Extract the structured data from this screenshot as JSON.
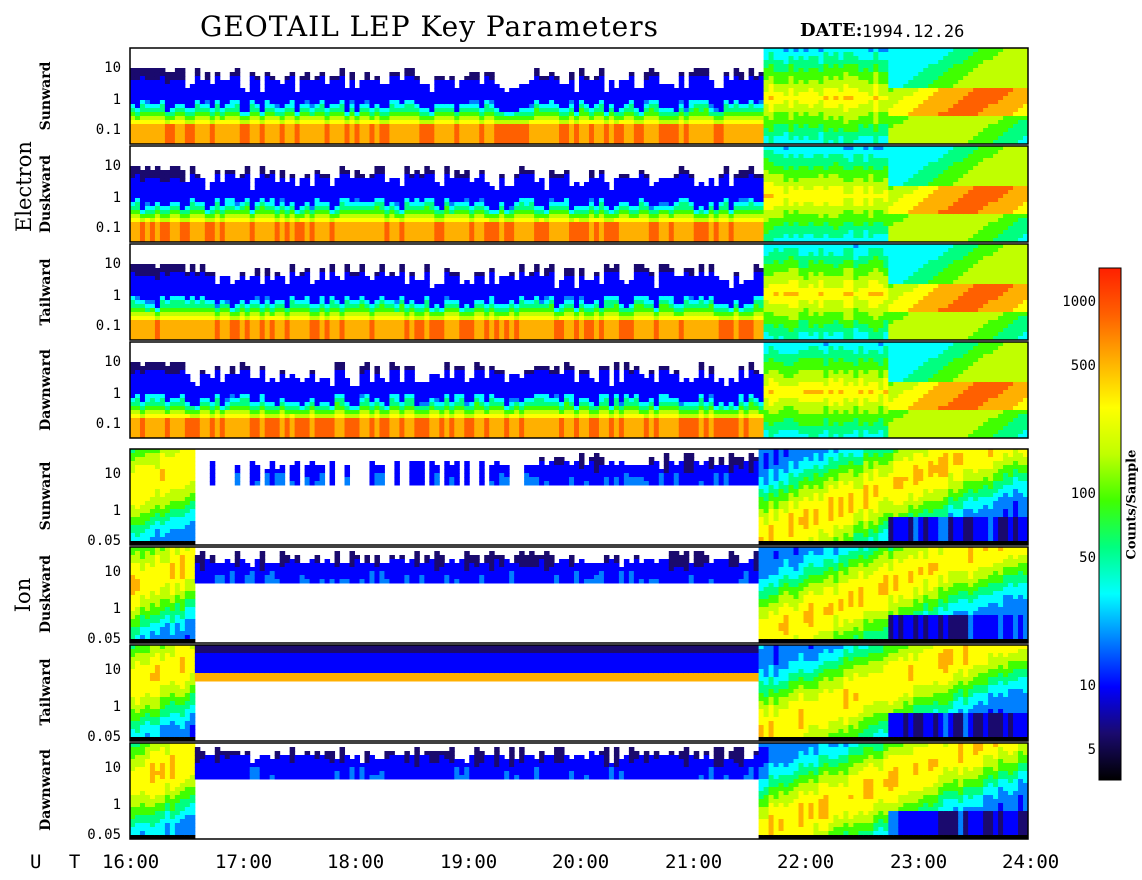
{
  "title": "GEOTAIL LEP Key Parameters",
  "date_label": "DATE:",
  "date_value": "1994.12.26",
  "x_axis_label": "U T",
  "x_ticks": [
    "16:00",
    "17:00",
    "18:00",
    "19:00",
    "20:00",
    "21:00",
    "22:00",
    "23:00",
    "24:00"
  ],
  "groups": [
    {
      "name": "Electron",
      "panels": [
        "Sunward",
        "Duskward",
        "Tailward",
        "Dawnward"
      ],
      "y_ticks": [
        "10",
        "1",
        "0.1"
      ]
    },
    {
      "name": "Ion",
      "panels": [
        "Sunward",
        "Duskward",
        "Tailward",
        "Dawnward"
      ],
      "y_ticks": [
        "10",
        "1",
        "0.05"
      ]
    }
  ],
  "colorbar": {
    "label": "Counts/Sample",
    "ticks": [
      "1000",
      "500",
      "100",
      "50",
      "10",
      "5"
    ],
    "colors": [
      "#000000",
      "#1a0a6e",
      "#0000ff",
      "#0080ff",
      "#00ffff",
      "#00ff80",
      "#40ff00",
      "#c0ff00",
      "#ffff00",
      "#ffb000",
      "#ff6000",
      "#ff2000"
    ]
  },
  "chart_data": {
    "type": "heatmap",
    "title": "GEOTAIL LEP Key Parameters",
    "xlabel": "U T",
    "x_range": [
      "16:00",
      "24:00"
    ],
    "y_scale": "log",
    "color_scale": "log",
    "color_label": "Counts/Sample",
    "color_range": [
      3,
      1500
    ],
    "panels": [
      "Electron Sunward",
      "Electron Duskward",
      "Electron Tailward",
      "Electron Dawnward",
      "Ion Sunward",
      "Ion Duskward",
      "Ion Tailward",
      "Ion Dawnward"
    ]
  }
}
